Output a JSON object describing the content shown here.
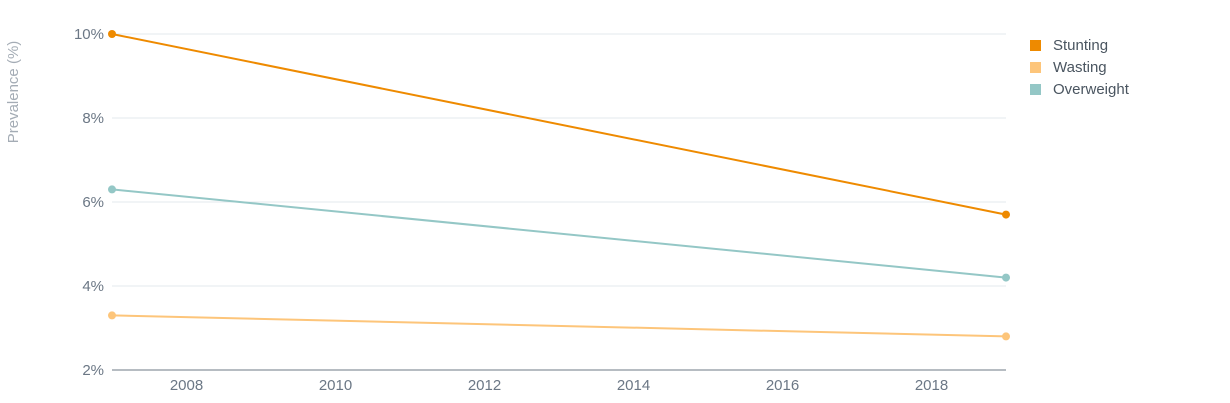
{
  "chart_data": {
    "type": "line",
    "title": "",
    "xlabel": "",
    "ylabel": "Prevalence (%)",
    "x": [
      2007,
      2019
    ],
    "x_ticks": [
      2008,
      2010,
      2012,
      2014,
      2016,
      2018
    ],
    "y_ticks": [
      "2%",
      "4%",
      "6%",
      "8%",
      "10%"
    ],
    "y_tick_values": [
      2,
      4,
      6,
      8,
      10
    ],
    "xlim": [
      2007,
      2019
    ],
    "ylim": [
      2,
      10
    ],
    "grid": true,
    "legend_position": "top-right",
    "series": [
      {
        "name": "Stunting",
        "color": "#ee8a00",
        "values": [
          10.0,
          5.7
        ]
      },
      {
        "name": "Wasting",
        "color": "#fdc57a",
        "values": [
          3.3,
          2.8
        ]
      },
      {
        "name": "Overweight",
        "color": "#94c7c6",
        "values": [
          6.3,
          4.2
        ]
      }
    ]
  }
}
